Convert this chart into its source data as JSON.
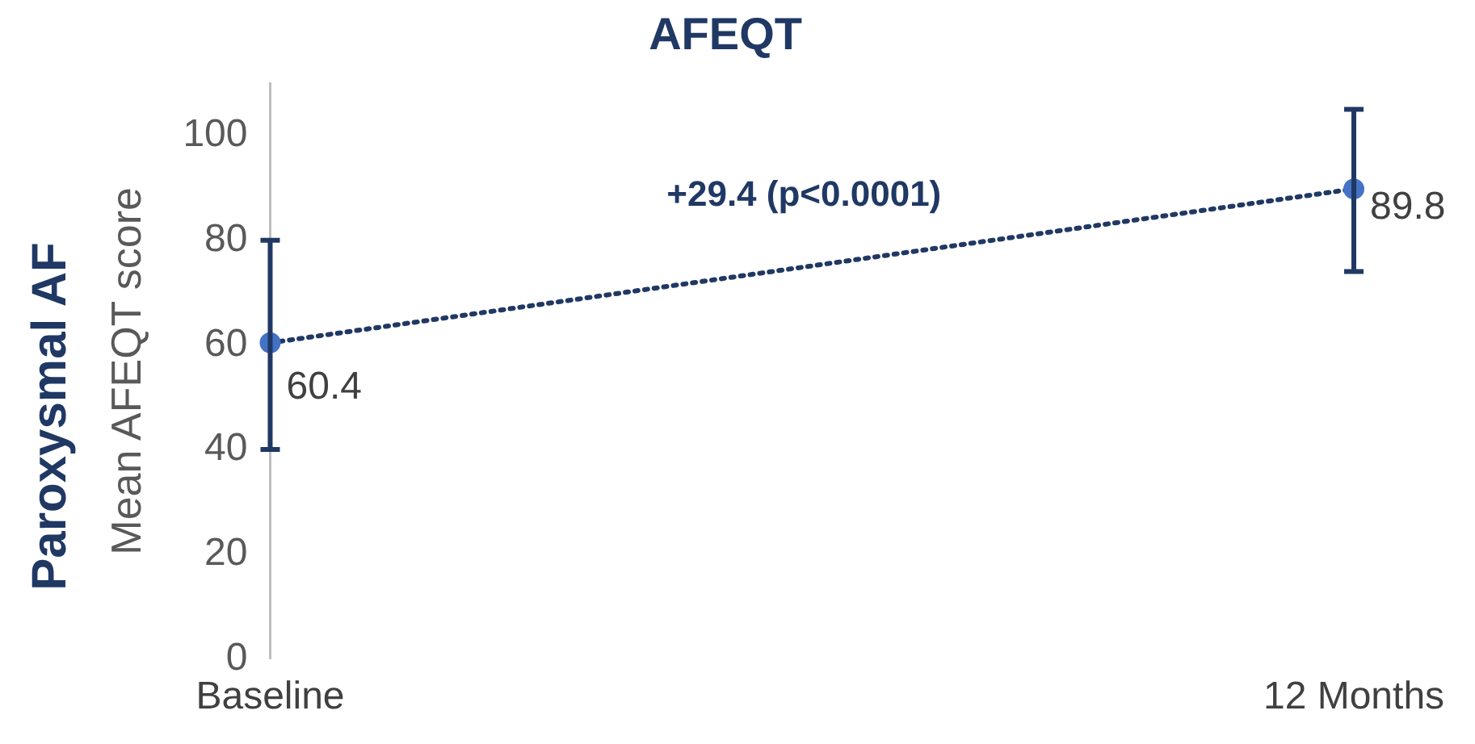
{
  "chart_data": {
    "type": "line",
    "title": "AFEQT",
    "ylabel": "Mean AFEQT score",
    "annotations": [
      "Paroxysmal AF",
      "+29.4 (p<0.0001)"
    ],
    "categories": [
      "Baseline",
      "12 Months"
    ],
    "series": [
      {
        "color": "#203864",
        "values": [
          60.4,
          89.8
        ],
        "errors": [
          [
            40,
            80
          ],
          [
            74,
            105
          ]
        ]
      }
    ],
    "ylim": [
      0,
      110
    ],
    "yticks": [
      0,
      20,
      40,
      60,
      80,
      100
    ],
    "grid": false,
    "legend": false,
    "marker": "circle",
    "line_style": "dotted",
    "data_labels": true
  }
}
